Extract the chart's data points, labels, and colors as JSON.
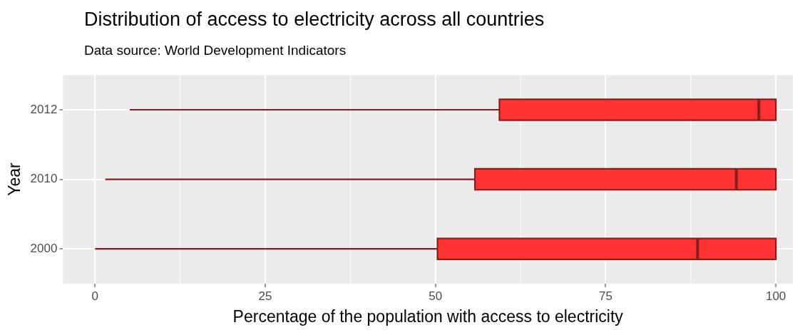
{
  "chart_data": {
    "type": "box",
    "orientation": "horizontal",
    "title": "Distribution of access to electricity across all countries",
    "subtitle": "Data source: World Development Indicators",
    "xlabel": "Percentage of the population with access to electricity",
    "ylabel": "Year",
    "categories": [
      "2012",
      "2010",
      "2000"
    ],
    "boxes": [
      {
        "low": 5.1,
        "q1": 59.4,
        "median": 97.5,
        "q3": 100,
        "high": 100
      },
      {
        "low": 1.5,
        "q1": 55.8,
        "median": 94.2,
        "q3": 100,
        "high": 100
      },
      {
        "low": 0,
        "q1": 50.3,
        "median": 88.5,
        "q3": 100,
        "high": 100
      }
    ],
    "color": "#ff3333",
    "xlim": [
      -4.7,
      102.5
    ],
    "xticks": [
      0,
      25,
      50,
      75,
      100
    ],
    "grid": true,
    "legend": false
  }
}
